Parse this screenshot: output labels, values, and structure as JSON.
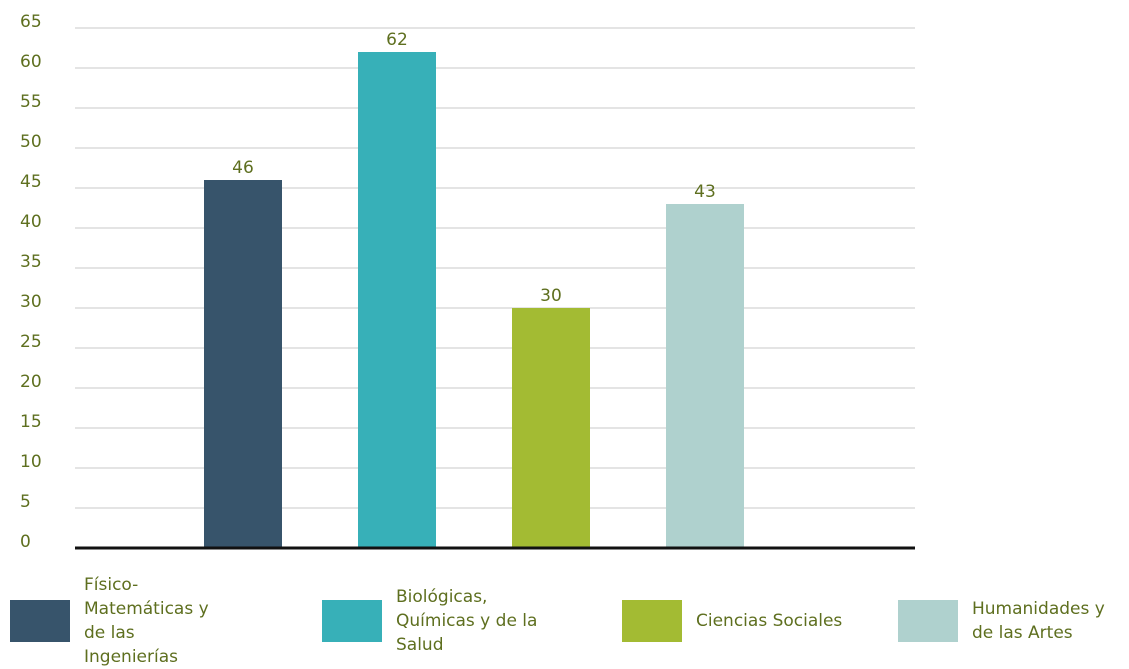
{
  "chart_data": {
    "type": "bar",
    "categories": [
      "Físico-Matemáticas y de las Ingenierías",
      "Biológicas, Químicas y de la Salud",
      "Ciencias Sociales",
      "Humanidades y de las Artes"
    ],
    "values": [
      46,
      62,
      30,
      43
    ],
    "colors": [
      "#37546b",
      "#37b0b8",
      "#a3bb33",
      "#afd1ce"
    ],
    "ylim": [
      0,
      65
    ],
    "yticks": [
      0,
      5,
      10,
      15,
      20,
      25,
      30,
      35,
      40,
      45,
      50,
      55,
      60,
      65
    ],
    "grid": true
  }
}
